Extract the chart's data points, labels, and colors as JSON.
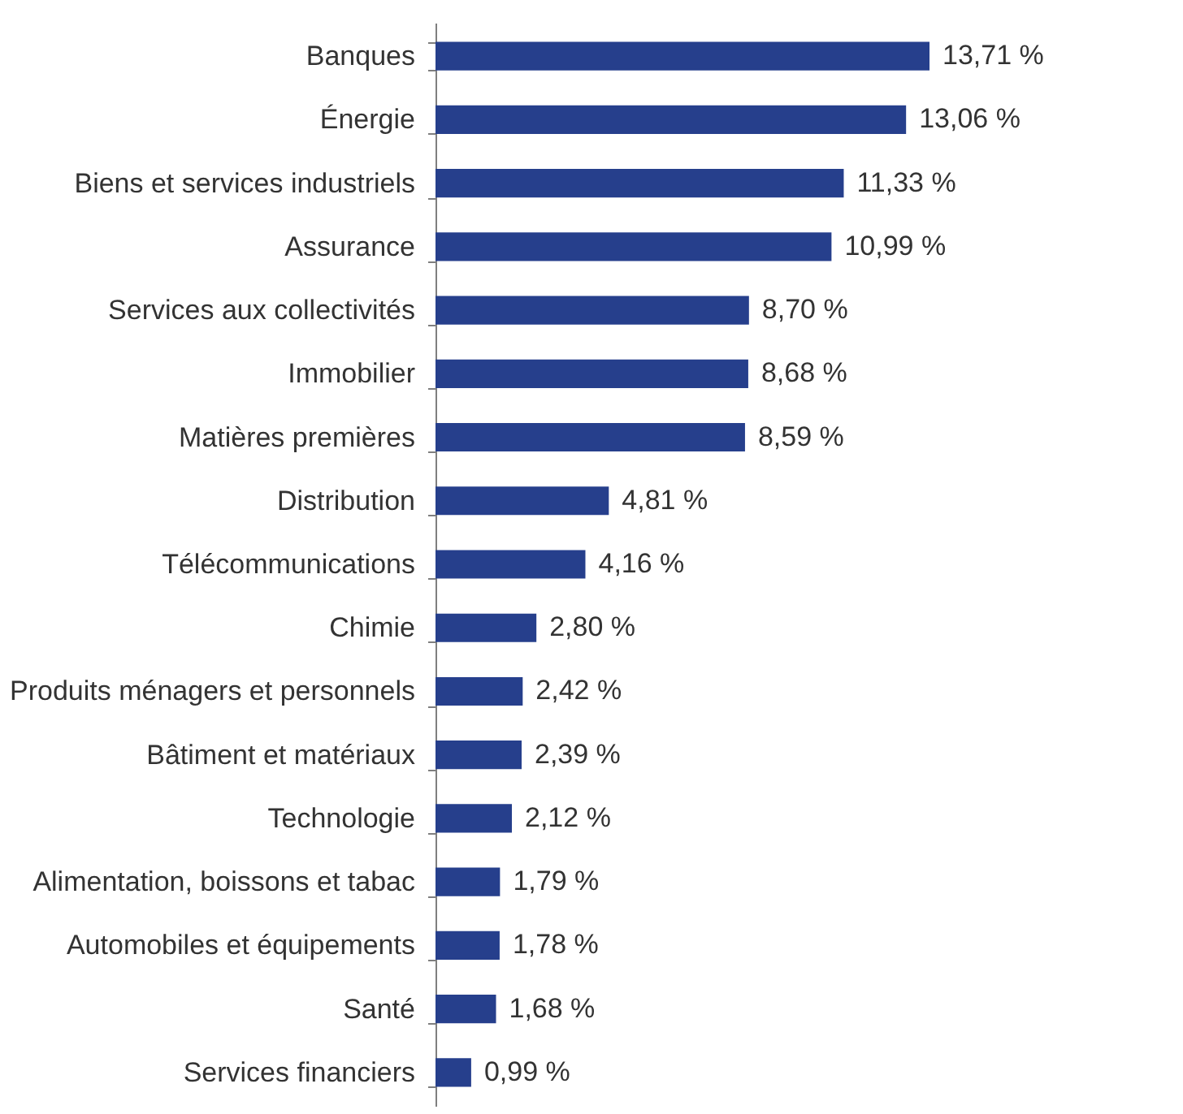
{
  "chart_data": {
    "type": "bar",
    "orientation": "horizontal",
    "color": "#263f8c",
    "categories": [
      "Banques",
      "Énergie",
      "Biens et services industriels",
      "Assurance",
      "Services aux collectivités",
      "Immobilier",
      "Matières premières",
      "Distribution",
      "Télécommunications",
      "Chimie",
      "Produits ménagers et personnels",
      "Bâtiment et matériaux",
      "Technologie",
      "Alimentation, boissons et tabac",
      "Automobiles et équipements",
      "Santé",
      "Services financiers"
    ],
    "values": [
      13.71,
      13.06,
      11.33,
      10.99,
      8.7,
      8.68,
      8.59,
      4.81,
      4.16,
      2.8,
      2.42,
      2.39,
      2.12,
      1.79,
      1.78,
      1.68,
      0.99
    ],
    "value_labels": [
      "13,71 %",
      "13,06 %",
      "11,33 %",
      "10,99 %",
      "8,70 %",
      "8,68 %",
      "8,59 %",
      "4,81 %",
      "4,16 %",
      "2,80 %",
      "2,42 %",
      "2,39 %",
      "2,12 %",
      "1,79 %",
      "1,78 %",
      "1,68 %",
      "0,99 %"
    ]
  }
}
